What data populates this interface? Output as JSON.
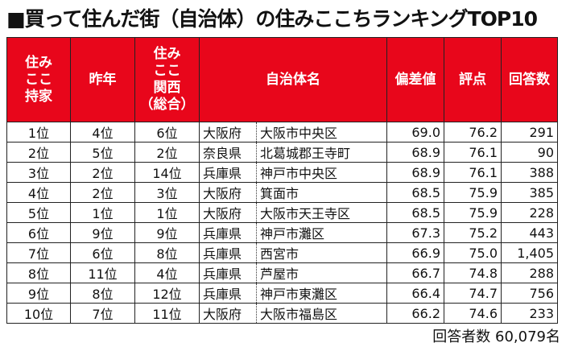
{
  "title_mark": "■",
  "title": "買って住んだ街（自治体）の住みここちランキングTOP10",
  "headers": {
    "sumikokochi_mochiie": [
      "住み",
      "ここ",
      "持家"
    ],
    "sakunen": "昨年",
    "sumikokochi_kansai": [
      "住み",
      "ここ",
      "関西",
      "（総合）"
    ],
    "jichitai": "自治体名",
    "hensachi": "偏差値",
    "hyoten": "評点",
    "kaitosu": "回答数"
  },
  "rows": [
    {
      "rank": "1位",
      "last": "4位",
      "kansai": "6位",
      "pref": "大阪府",
      "city": "大阪市中央区",
      "dev": "69.0",
      "score": "76.2",
      "count": "291"
    },
    {
      "rank": "2位",
      "last": "5位",
      "kansai": "2位",
      "pref": "奈良県",
      "city": "北葛城郡王寺町",
      "dev": "68.9",
      "score": "76.1",
      "count": "90"
    },
    {
      "rank": "3位",
      "last": "2位",
      "kansai": "14位",
      "pref": "兵庫県",
      "city": "神戸市中央区",
      "dev": "68.9",
      "score": "76.1",
      "count": "388"
    },
    {
      "rank": "4位",
      "last": "2位",
      "kansai": "3位",
      "pref": "大阪府",
      "city": "箕面市",
      "dev": "68.5",
      "score": "75.9",
      "count": "385"
    },
    {
      "rank": "5位",
      "last": "1位",
      "kansai": "1位",
      "pref": "大阪府",
      "city": "大阪市天王寺区",
      "dev": "68.5",
      "score": "75.9",
      "count": "228"
    },
    {
      "rank": "6位",
      "last": "9位",
      "kansai": "9位",
      "pref": "兵庫県",
      "city": "神戸市灘区",
      "dev": "67.3",
      "score": "75.2",
      "count": "443"
    },
    {
      "rank": "7位",
      "last": "6位",
      "kansai": "8位",
      "pref": "兵庫県",
      "city": "西宮市",
      "dev": "66.9",
      "score": "75.0",
      "count": "1,405"
    },
    {
      "rank": "8位",
      "last": "11位",
      "kansai": "4位",
      "pref": "兵庫県",
      "city": "芦屋市",
      "dev": "66.7",
      "score": "74.8",
      "count": "288"
    },
    {
      "rank": "9位",
      "last": "8位",
      "kansai": "12位",
      "pref": "兵庫県",
      "city": "神戸市東灘区",
      "dev": "66.4",
      "score": "74.7",
      "count": "756"
    },
    {
      "rank": "10位",
      "last": "7位",
      "kansai": "11位",
      "pref": "大阪府",
      "city": "大阪市福島区",
      "dev": "66.2",
      "score": "74.6",
      "count": "233"
    }
  ],
  "footer": "回答者数 60,079名",
  "colors": {
    "header_bg": "#e8061b",
    "header_text": "#ffffff"
  }
}
